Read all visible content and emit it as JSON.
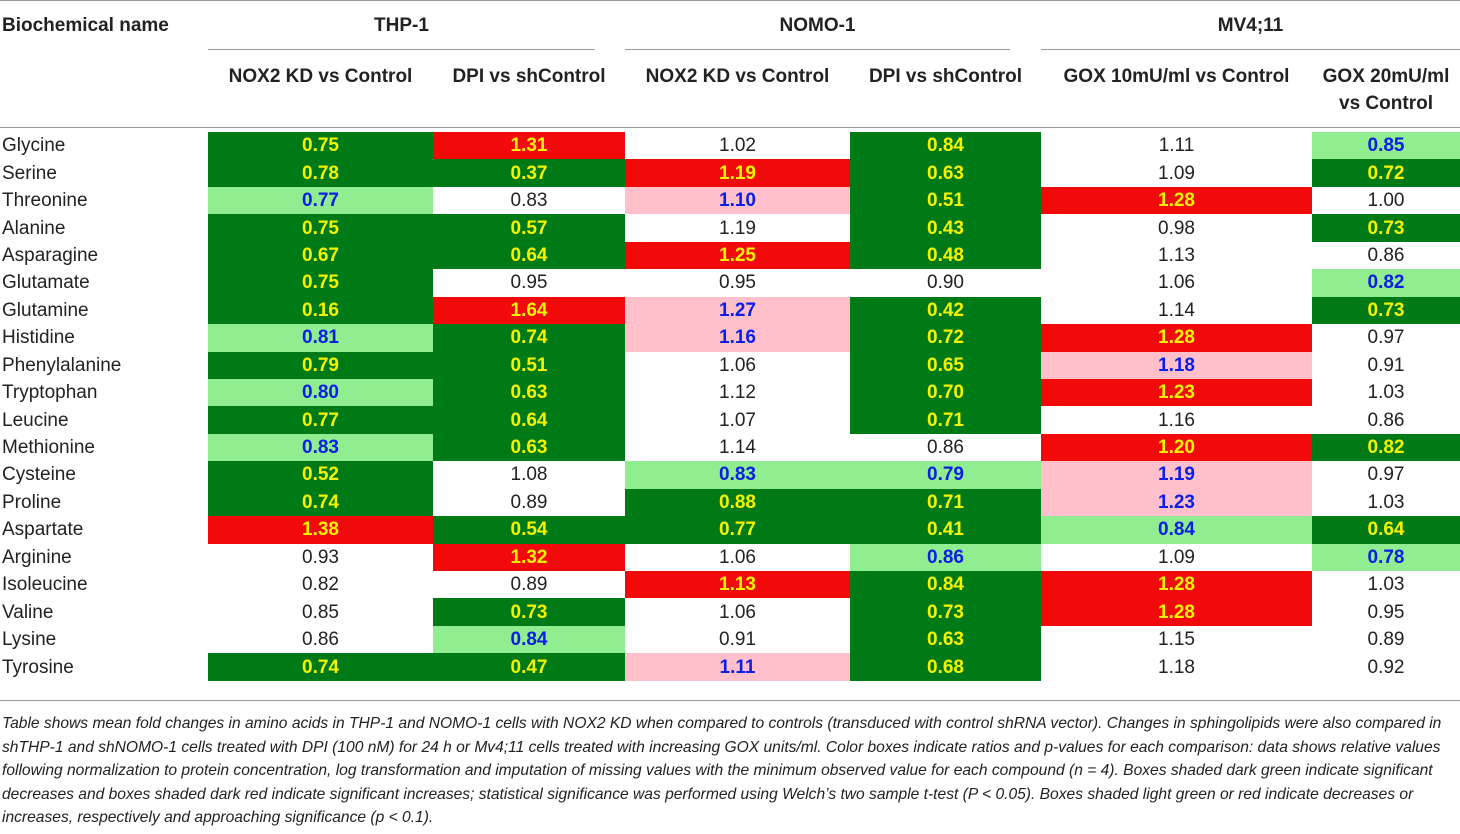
{
  "header": {
    "name_col": "Biochemical name",
    "groups": [
      "THP-1",
      "NOMO-1",
      "MV4;11"
    ],
    "columns": [
      [
        "NOX2 KD vs Control"
      ],
      [
        "DPI vs shControl"
      ],
      [
        "NOX2 KD vs Control"
      ],
      [
        "DPI vs shControl"
      ],
      [
        "GOX 10mU/ml vs Control"
      ],
      [
        "GOX 20mU/ml",
        "vs Control"
      ]
    ]
  },
  "colors": {
    "sig_down": "#007a16",
    "sig_up": "#f00a0a",
    "trend_down": "#90ed90",
    "trend_up": "#ffc0cb",
    "highlight_text": "#f4f400",
    "trend_text": "#0a1ee6"
  },
  "rows": [
    {
      "name": "Glycine",
      "cells": [
        {
          "v": "0.75",
          "s": "sig-down"
        },
        {
          "v": "1.31",
          "s": "sig-up"
        },
        {
          "v": "1.02",
          "s": "none"
        },
        {
          "v": "0.84",
          "s": "sig-down"
        },
        {
          "v": "1.11",
          "s": "none"
        },
        {
          "v": "0.85",
          "s": "trend-down"
        }
      ]
    },
    {
      "name": "Serine",
      "cells": [
        {
          "v": "0.78",
          "s": "sig-down"
        },
        {
          "v": "0.37",
          "s": "sig-down"
        },
        {
          "v": "1.19",
          "s": "sig-up"
        },
        {
          "v": "0.63",
          "s": "sig-down"
        },
        {
          "v": "1.09",
          "s": "none"
        },
        {
          "v": "0.72",
          "s": "sig-down"
        }
      ]
    },
    {
      "name": "Threonine",
      "cells": [
        {
          "v": "0.77",
          "s": "trend-down"
        },
        {
          "v": "0.83",
          "s": "none"
        },
        {
          "v": "1.10",
          "s": "trend-up"
        },
        {
          "v": "0.51",
          "s": "sig-down"
        },
        {
          "v": "1.28",
          "s": "sig-up"
        },
        {
          "v": "1.00",
          "s": "none"
        }
      ]
    },
    {
      "name": "Alanine",
      "cells": [
        {
          "v": "0.75",
          "s": "sig-down"
        },
        {
          "v": "0.57",
          "s": "sig-down"
        },
        {
          "v": "1.19",
          "s": "none"
        },
        {
          "v": "0.43",
          "s": "sig-down"
        },
        {
          "v": "0.98",
          "s": "none"
        },
        {
          "v": "0.73",
          "s": "sig-down"
        }
      ]
    },
    {
      "name": "Asparagine",
      "cells": [
        {
          "v": "0.67",
          "s": "sig-down"
        },
        {
          "v": "0.64",
          "s": "sig-down"
        },
        {
          "v": "1.25",
          "s": "sig-up"
        },
        {
          "v": "0.48",
          "s": "sig-down"
        },
        {
          "v": "1.13",
          "s": "none"
        },
        {
          "v": "0.86",
          "s": "none"
        }
      ]
    },
    {
      "name": "Glutamate",
      "cells": [
        {
          "v": "0.75",
          "s": "sig-down"
        },
        {
          "v": "0.95",
          "s": "none"
        },
        {
          "v": "0.95",
          "s": "none"
        },
        {
          "v": "0.90",
          "s": "none"
        },
        {
          "v": "1.06",
          "s": "none"
        },
        {
          "v": "0.82",
          "s": "trend-down"
        }
      ]
    },
    {
      "name": "Glutamine",
      "cells": [
        {
          "v": "0.16",
          "s": "sig-down"
        },
        {
          "v": "1.64",
          "s": "sig-up"
        },
        {
          "v": "1.27",
          "s": "trend-up"
        },
        {
          "v": "0.42",
          "s": "sig-down"
        },
        {
          "v": "1.14",
          "s": "none"
        },
        {
          "v": "0.73",
          "s": "sig-down"
        }
      ]
    },
    {
      "name": "Histidine",
      "cells": [
        {
          "v": "0.81",
          "s": "trend-down"
        },
        {
          "v": "0.74",
          "s": "sig-down"
        },
        {
          "v": "1.16",
          "s": "trend-up"
        },
        {
          "v": "0.72",
          "s": "sig-down"
        },
        {
          "v": "1.28",
          "s": "sig-up"
        },
        {
          "v": "0.97",
          "s": "none"
        }
      ]
    },
    {
      "name": "Phenylalanine",
      "cells": [
        {
          "v": "0.79",
          "s": "sig-down"
        },
        {
          "v": "0.51",
          "s": "sig-down"
        },
        {
          "v": "1.06",
          "s": "none"
        },
        {
          "v": "0.65",
          "s": "sig-down"
        },
        {
          "v": "1.18",
          "s": "trend-up"
        },
        {
          "v": "0.91",
          "s": "none"
        }
      ]
    },
    {
      "name": "Tryptophan",
      "cells": [
        {
          "v": "0.80",
          "s": "trend-down"
        },
        {
          "v": "0.63",
          "s": "sig-down"
        },
        {
          "v": "1.12",
          "s": "none"
        },
        {
          "v": "0.70",
          "s": "sig-down"
        },
        {
          "v": "1.23",
          "s": "sig-up"
        },
        {
          "v": "1.03",
          "s": "none"
        }
      ]
    },
    {
      "name": "Leucine",
      "cells": [
        {
          "v": "0.77",
          "s": "sig-down"
        },
        {
          "v": "0.64",
          "s": "sig-down"
        },
        {
          "v": "1.07",
          "s": "none"
        },
        {
          "v": "0.71",
          "s": "sig-down"
        },
        {
          "v": "1.16",
          "s": "none"
        },
        {
          "v": "0.86",
          "s": "none"
        }
      ]
    },
    {
      "name": "Methionine",
      "cells": [
        {
          "v": "0.83",
          "s": "trend-down"
        },
        {
          "v": "0.63",
          "s": "sig-down"
        },
        {
          "v": "1.14",
          "s": "none"
        },
        {
          "v": "0.86",
          "s": "none"
        },
        {
          "v": "1.20",
          "s": "sig-up"
        },
        {
          "v": "0.82",
          "s": "sig-down"
        }
      ]
    },
    {
      "name": "Cysteine",
      "cells": [
        {
          "v": "0.52",
          "s": "sig-down"
        },
        {
          "v": "1.08",
          "s": "none"
        },
        {
          "v": "0.83",
          "s": "trend-down"
        },
        {
          "v": "0.79",
          "s": "trend-down"
        },
        {
          "v": "1.19",
          "s": "trend-up"
        },
        {
          "v": "0.97",
          "s": "none"
        }
      ]
    },
    {
      "name": "Proline",
      "cells": [
        {
          "v": "0.74",
          "s": "sig-down"
        },
        {
          "v": "0.89",
          "s": "none"
        },
        {
          "v": "0.88",
          "s": "sig-down"
        },
        {
          "v": "0.71",
          "s": "sig-down"
        },
        {
          "v": "1.23",
          "s": "trend-up"
        },
        {
          "v": "1.03",
          "s": "none"
        }
      ]
    },
    {
      "name": "Aspartate",
      "cells": [
        {
          "v": "1.38",
          "s": "sig-up"
        },
        {
          "v": "0.54",
          "s": "sig-down"
        },
        {
          "v": "0.77",
          "s": "sig-down"
        },
        {
          "v": "0.41",
          "s": "sig-down"
        },
        {
          "v": "0.84",
          "s": "trend-down"
        },
        {
          "v": "0.64",
          "s": "sig-down"
        }
      ]
    },
    {
      "name": "Arginine",
      "cells": [
        {
          "v": "0.93",
          "s": "none"
        },
        {
          "v": "1.32",
          "s": "sig-up"
        },
        {
          "v": "1.06",
          "s": "none"
        },
        {
          "v": "0.86",
          "s": "trend-down"
        },
        {
          "v": "1.09",
          "s": "none"
        },
        {
          "v": "0.78",
          "s": "trend-down"
        }
      ]
    },
    {
      "name": "Isoleucine",
      "cells": [
        {
          "v": "0.82",
          "s": "none"
        },
        {
          "v": "0.89",
          "s": "none"
        },
        {
          "v": "1.13",
          "s": "sig-up"
        },
        {
          "v": "0.84",
          "s": "sig-down"
        },
        {
          "v": "1.28",
          "s": "sig-up"
        },
        {
          "v": "1.03",
          "s": "none"
        }
      ]
    },
    {
      "name": "Valine",
      "cells": [
        {
          "v": "0.85",
          "s": "none"
        },
        {
          "v": "0.73",
          "s": "sig-down"
        },
        {
          "v": "1.06",
          "s": "none"
        },
        {
          "v": "0.73",
          "s": "sig-down"
        },
        {
          "v": "1.28",
          "s": "sig-up"
        },
        {
          "v": "0.95",
          "s": "none"
        }
      ]
    },
    {
      "name": "Lysine",
      "cells": [
        {
          "v": "0.86",
          "s": "none"
        },
        {
          "v": "0.84",
          "s": "trend-down"
        },
        {
          "v": "0.91",
          "s": "none"
        },
        {
          "v": "0.63",
          "s": "sig-down"
        },
        {
          "v": "1.15",
          "s": "none"
        },
        {
          "v": "0.89",
          "s": "none"
        }
      ]
    },
    {
      "name": "Tyrosine",
      "cells": [
        {
          "v": "0.74",
          "s": "sig-down"
        },
        {
          "v": "0.47",
          "s": "sig-down"
        },
        {
          "v": "1.11",
          "s": "trend-up"
        },
        {
          "v": "0.68",
          "s": "sig-down"
        },
        {
          "v": "1.18",
          "s": "none"
        },
        {
          "v": "0.92",
          "s": "none"
        }
      ]
    }
  ],
  "footnote": "Table shows mean fold changes in amino acids in THP-1 and NOMO-1 cells with NOX2 KD when compared to controls (transduced with control shRNA vector). Changes in sphingolipids were also compared in shTHP-1 and shNOMO-1 cells treated with DPI (100 nM) for 24 h or Mv4;11 cells treated with increasing GOX units/ml. Color boxes indicate ratios and p-values for each comparison: data shows relative values following normalization to protein concentration, log transformation and imputation of missing values with the minimum observed value for each compound (n = 4). Boxes shaded dark green indicate significant decreases and boxes shaded dark red indicate significant increases; statistical significance was performed using Welch’s two sample t-test (P < 0.05). Boxes shaded light green or red indicate decreases or increases, respectively and approaching significance (p < 0.1)."
}
